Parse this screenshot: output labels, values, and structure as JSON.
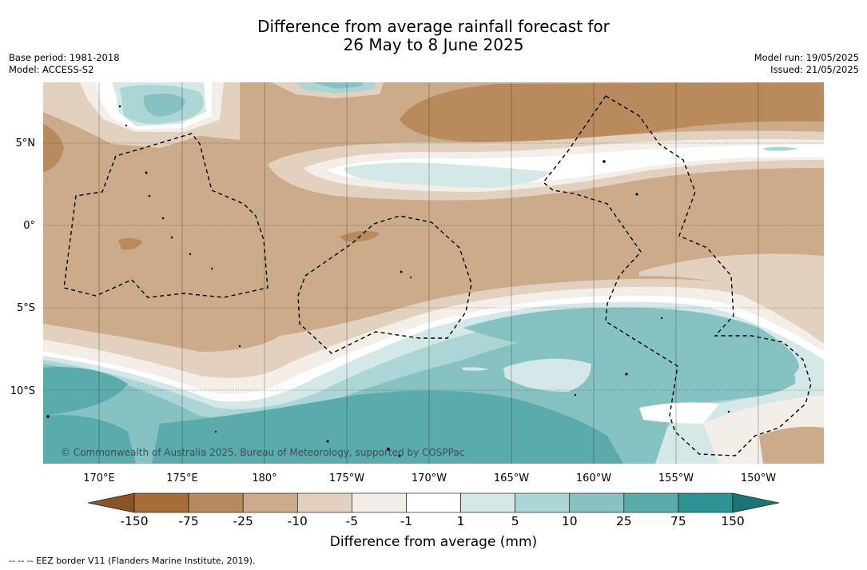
{
  "title_line1": "Difference from average rainfall forecast for",
  "title_line2": "26 May to 8 June 2025",
  "base_period": "Base period: 1981-2018",
  "model": "Model: ACCESS-S2",
  "model_run": "Model run: 19/05/2025",
  "issued": "Issued: 21/05/2025",
  "copyright": "© Commonwealth of Australia 2025, Bureau of Meteorology, supported by COSPPac",
  "lat_labels": [
    "5°N",
    "0°",
    "5°S",
    "10°S"
  ],
  "lon_labels": [
    "170°E",
    "175°E",
    "180°",
    "175°W",
    "170°W",
    "165°W",
    "160°W",
    "155°W",
    "150°W"
  ],
  "colorbar": {
    "ticks": [
      "-150",
      "-75",
      "-25",
      "-10",
      "-5",
      "-1",
      "1",
      "5",
      "10",
      "25",
      "75",
      "150"
    ],
    "colors": [
      "#a86c3a",
      "#b98a5b",
      "#ccab8a",
      "#e2d1bf",
      "#f3eee7",
      "#ffffff",
      "#d3e8e7",
      "#acd6d5",
      "#86c2c2",
      "#59abac",
      "#2e9493"
    ],
    "under_color": "#8a5426",
    "over_color": "#1d7474",
    "title": "Difference from average (mm)"
  },
  "footnote": "--  --  -- EEZ border V11 (Flanders Marine Institute, 2019)."
}
